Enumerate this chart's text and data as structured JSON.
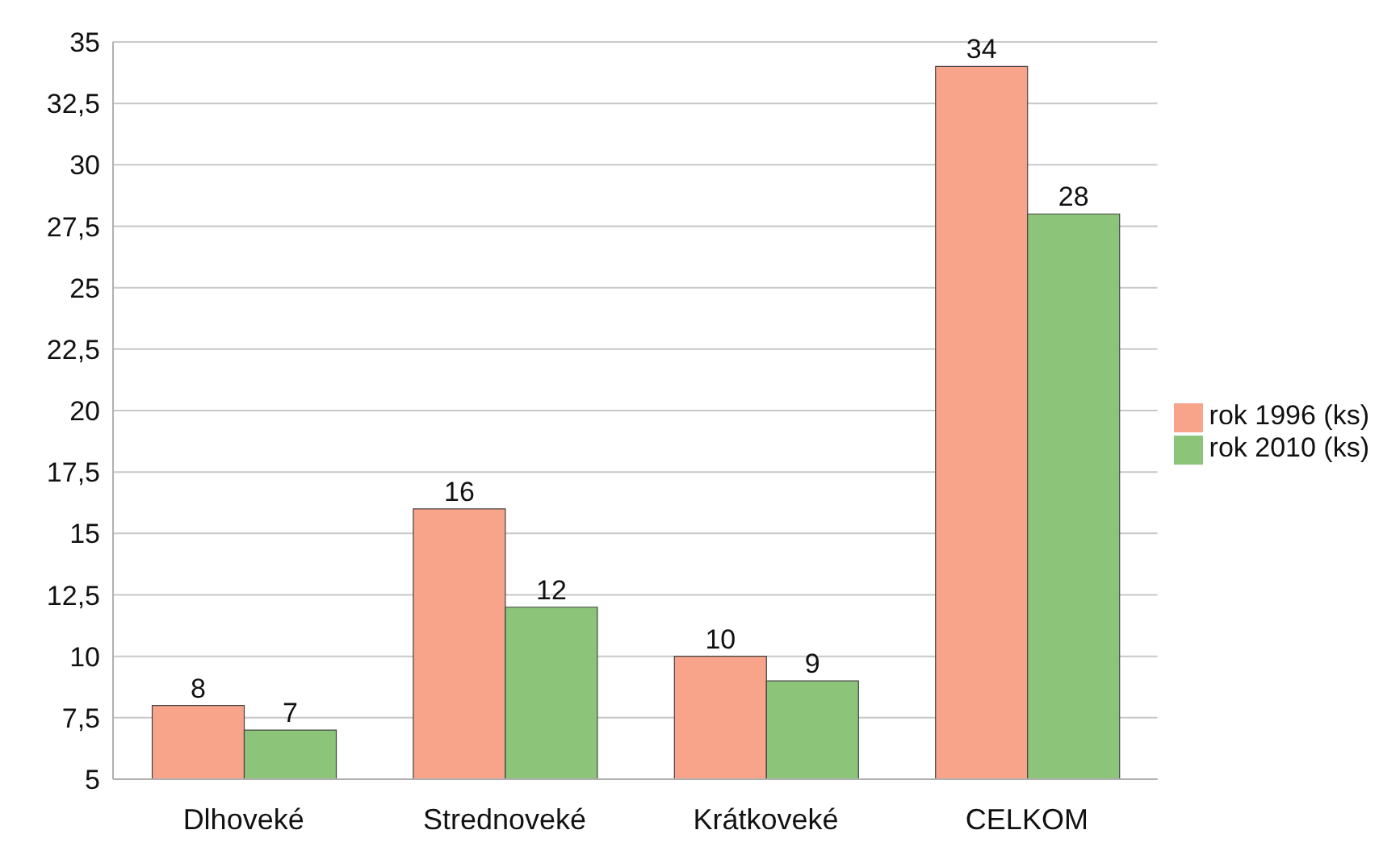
{
  "chart_data": {
    "type": "bar",
    "categories": [
      "Dlhoveké",
      "Strednoveké",
      "Krátkoveké",
      "CELKOM"
    ],
    "series": [
      {
        "name": "rok 1996 (ks)",
        "color": "#f8a48a",
        "values": [
          8,
          16,
          10,
          34
        ]
      },
      {
        "name": "rok 2010 (ks)",
        "color": "#8cc47a",
        "values": [
          7,
          12,
          9,
          28
        ]
      }
    ],
    "ylim": [
      5,
      35
    ],
    "yticks": [
      5,
      {
        "value": 7.5,
        "label": "7,5"
      },
      10,
      {
        "value": 12.5,
        "label": "12,5"
      },
      15,
      {
        "value": 17.5,
        "label": "17,5"
      },
      20,
      {
        "value": 22.5,
        "label": "22,5"
      },
      25,
      {
        "value": 27.5,
        "label": "27,5"
      },
      30,
      {
        "value": 32.5,
        "label": "32,5"
      },
      35
    ],
    "grid": "y",
    "legend": "right",
    "data_labels": true
  }
}
